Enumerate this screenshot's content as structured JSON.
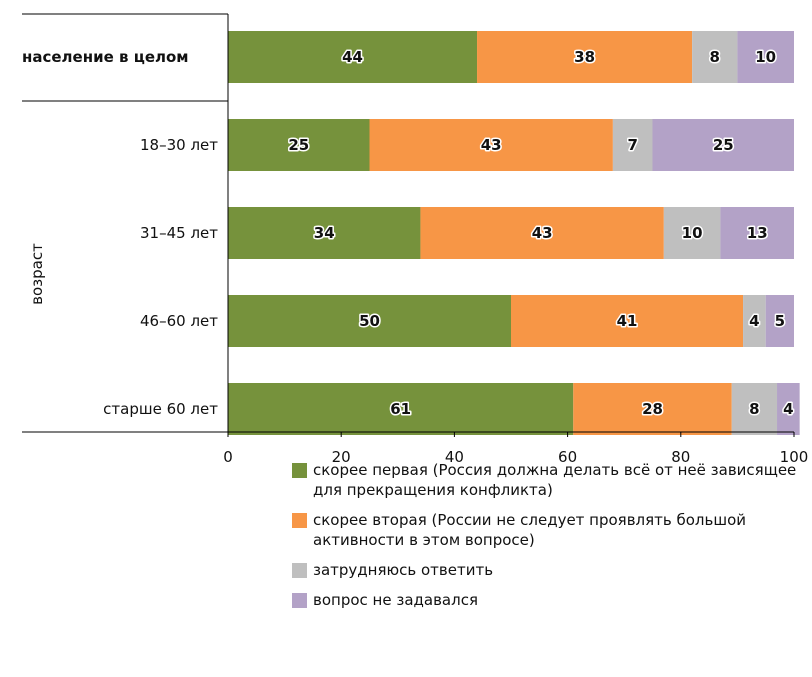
{
  "chart_data": {
    "type": "bar",
    "orientation": "horizontal",
    "stacked": true,
    "group_label": "возраст",
    "categories": [
      "население в целом",
      "18–30 лет",
      "31–45 лет",
      "46–60 лет",
      "старше 60 лет"
    ],
    "category_bold": [
      true,
      false,
      false,
      false,
      false
    ],
    "series": [
      {
        "name": "скорее первая (Россия должна делать всё от неё зависящее для прекращения конфликта)",
        "color": "#76923c",
        "values": [
          44,
          25,
          34,
          50,
          61
        ]
      },
      {
        "name": "скорее вторая (России не следует проявлять большой активности в этом вопросе)",
        "color": "#f79646",
        "values": [
          38,
          43,
          43,
          41,
          28
        ]
      },
      {
        "name": "затрудняюсь ответить",
        "color": "#bfbfbf",
        "values": [
          8,
          7,
          10,
          4,
          8
        ]
      },
      {
        "name": "вопрос не задавался",
        "color": "#b3a2c7",
        "values": [
          10,
          25,
          13,
          5,
          4
        ]
      }
    ],
    "xlim": [
      0,
      100
    ],
    "xticks": [
      "0",
      "20",
      "40",
      "60",
      "80",
      "100"
    ],
    "legend_position": "bottom-right",
    "grid": false
  }
}
